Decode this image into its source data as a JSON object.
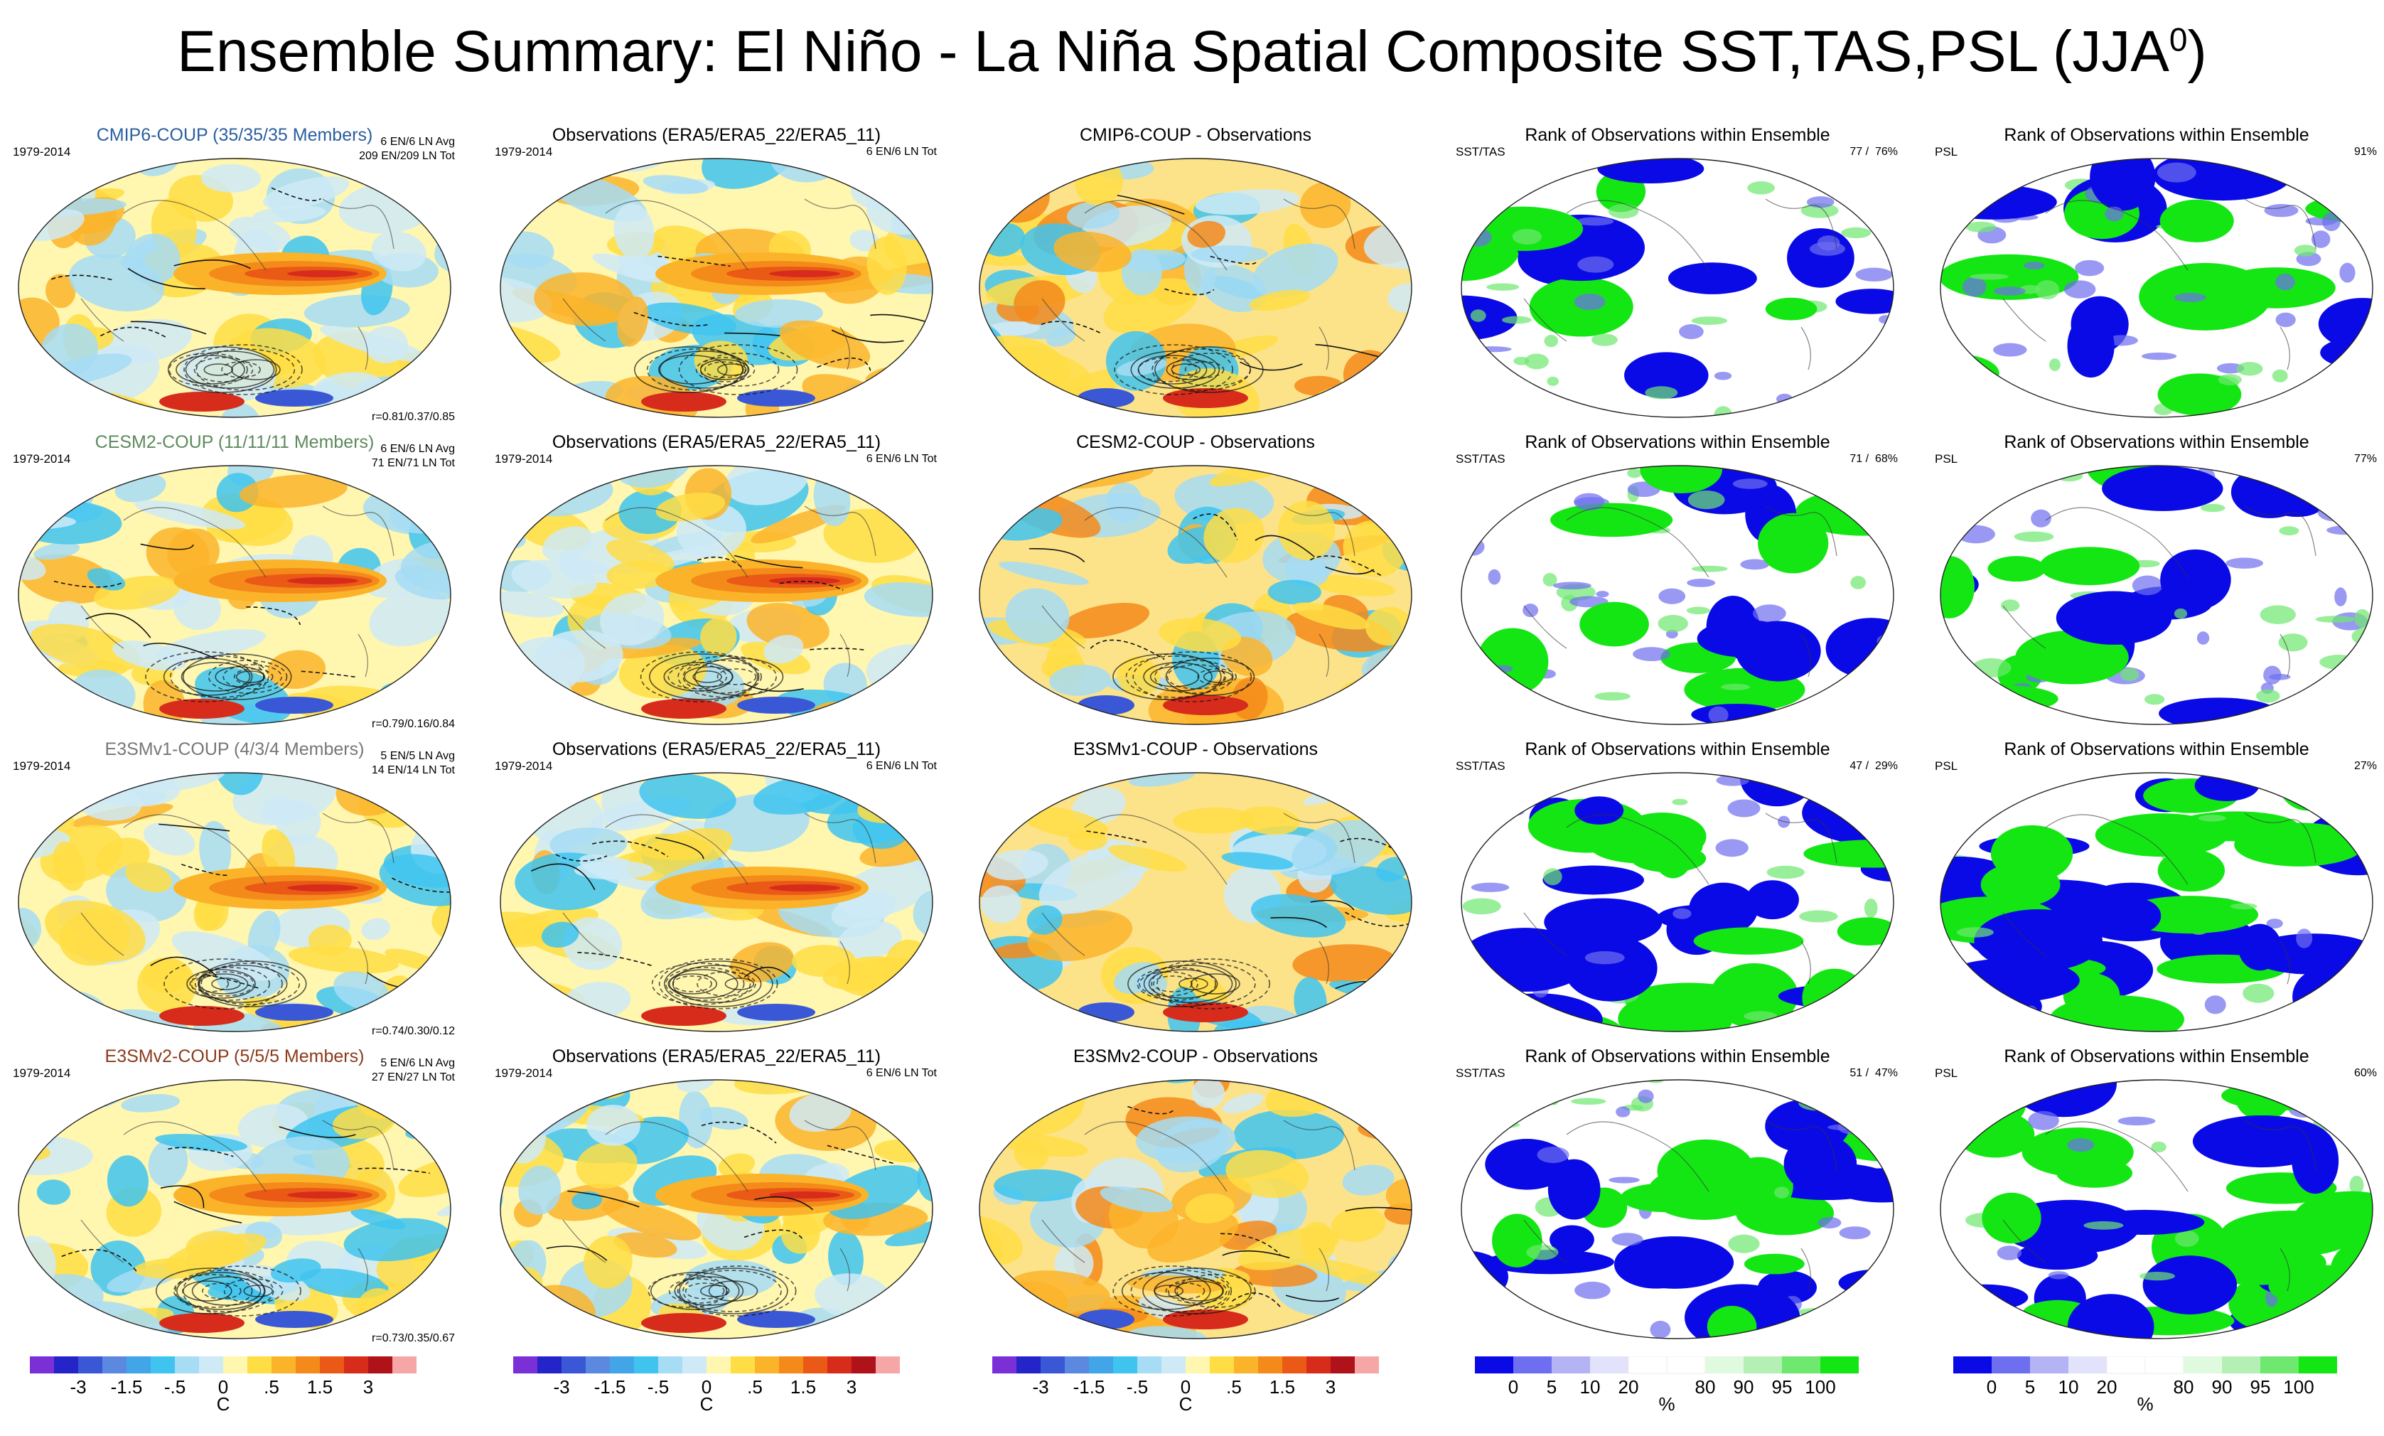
{
  "title": {
    "main": "Ensemble Summary: El Niño - La Niña Spatial Composite SST,TAS,PSL (JJA",
    "sup": "0",
    "close": ")"
  },
  "rows": [
    {
      "model": {
        "title": "CMIP6-COUP (35/35/35 Members)",
        "title_color": "#2a5f9e",
        "years": "1979-2014",
        "info": "6 EN/6 LN Avg\n209 EN/209 LN Tot",
        "stat": "r=0.81/0.37/0.85"
      },
      "obs": {
        "title": "Observations (ERA5/ERA5_22/ERA5_11)",
        "years": "1979-2014",
        "info": "6 EN/6 LN Tot"
      },
      "diff": {
        "title": "CMIP6-COUP - Observations"
      },
      "rank_sst": {
        "title": "Rank of Observations within Ensemble",
        "left": "SST/TAS",
        "right": "77 /  76%"
      },
      "rank_psl": {
        "title": "Rank of Observations within Ensemble",
        "left": "PSL",
        "right": "91%"
      }
    },
    {
      "model": {
        "title": "CESM2-COUP (11/11/11 Members)",
        "title_color": "#5d8a5d",
        "years": "1979-2014",
        "info": "6 EN/6 LN Avg\n71 EN/71 LN Tot",
        "stat": "r=0.79/0.16/0.84"
      },
      "obs": {
        "title": "Observations (ERA5/ERA5_22/ERA5_11)",
        "years": "1979-2014",
        "info": "6 EN/6 LN Tot"
      },
      "diff": {
        "title": "CESM2-COUP - Observations"
      },
      "rank_sst": {
        "title": "Rank of Observations within Ensemble",
        "left": "SST/TAS",
        "right": "71 /  68%"
      },
      "rank_psl": {
        "title": "Rank of Observations within Ensemble",
        "left": "PSL",
        "right": "77%"
      }
    },
    {
      "model": {
        "title": "E3SMv1-COUP (4/3/4 Members)",
        "title_color": "#777777",
        "years": "1979-2014",
        "info": "5 EN/5 LN Avg\n14 EN/14 LN Tot",
        "stat": "r=0.74/0.30/0.12"
      },
      "obs": {
        "title": "Observations (ERA5/ERA5_22/ERA5_11)",
        "years": "1979-2014",
        "info": "6 EN/6 LN Tot"
      },
      "diff": {
        "title": "E3SMv1-COUP - Observations"
      },
      "rank_sst": {
        "title": "Rank of Observations within Ensemble",
        "left": "SST/TAS",
        "right": "47 /  29%"
      },
      "rank_psl": {
        "title": "Rank of Observations within Ensemble",
        "left": "PSL",
        "right": "27%"
      }
    },
    {
      "model": {
        "title": "E3SMv2-COUP (5/5/5 Members)",
        "title_color": "#8b3a1a",
        "years": "1979-2014",
        "info": "5 EN/6 LN Avg\n27 EN/27 LN Tot",
        "stat": "r=0.73/0.35/0.67"
      },
      "obs": {
        "title": "Observations (ERA5/ERA5_22/ERA5_11)",
        "years": "1979-2014",
        "info": "6 EN/6 LN Tot"
      },
      "diff": {
        "title": "E3SMv2-COUP - Observations"
      },
      "rank_sst": {
        "title": "Rank of Observations within Ensemble",
        "left": "SST/TAS",
        "right": "51 /  47%"
      },
      "rank_psl": {
        "title": "Rank of Observations within Ensemble",
        "left": "PSL",
        "right": "60%"
      }
    }
  ],
  "colorbars": {
    "temperature": {
      "colors": [
        "#7b2fd6",
        "#2424c9",
        "#3a58d6",
        "#5b89e0",
        "#41a5e8",
        "#3fc4f0",
        "#a6dcf4",
        "#cfeaf7",
        "#fff6b0",
        "#ffdd44",
        "#fbb42a",
        "#f48a1a",
        "#ea5a16",
        "#d72c1c",
        "#b0121a",
        "#f6a6a6"
      ],
      "ticks": [
        "-3",
        "-1.5",
        "-.5",
        "0",
        ".5",
        "1.5",
        "3"
      ],
      "tick_bounds": [
        2,
        4,
        6,
        8,
        10,
        12,
        14
      ],
      "unit": "C"
    },
    "rank": {
      "colors": [
        "#0a0ae6",
        "#6e6ef0",
        "#b4b4f5",
        "#e2e2fa",
        "#ffffff",
        "#ffffff",
        "#e0fae0",
        "#b4f0b4",
        "#6ee86e",
        "#14e614"
      ],
      "ticks": [
        "0",
        "5",
        "10",
        "20",
        "80",
        "90",
        "95",
        "100"
      ],
      "tick_bounds": [
        1,
        2,
        3,
        4,
        6,
        7,
        8,
        9
      ],
      "unit": "%"
    }
  }
}
